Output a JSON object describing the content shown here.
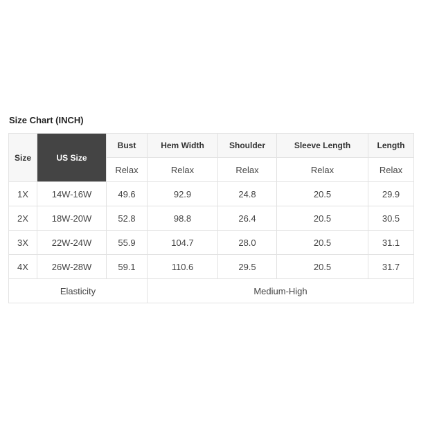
{
  "title": "Size Chart (INCH)",
  "headers": [
    "Size",
    "US Size",
    "Bust",
    "Hem Width",
    "Shoulder",
    "Sleeve Length",
    "Length"
  ],
  "fit": [
    "Relax",
    "Relax",
    "Relax",
    "Relax",
    "Relax"
  ],
  "rows": [
    [
      "1X",
      "14W-16W",
      "49.6",
      "92.9",
      "24.8",
      "20.5",
      "29.9"
    ],
    [
      "2X",
      "18W-20W",
      "52.8",
      "98.8",
      "26.4",
      "20.5",
      "30.5"
    ],
    [
      "3X",
      "22W-24W",
      "55.9",
      "104.7",
      "28.0",
      "20.5",
      "31.1"
    ],
    [
      "4X",
      "26W-28W",
      "59.1",
      "110.6",
      "29.5",
      "20.5",
      "31.7"
    ]
  ],
  "footer": {
    "label": "Elasticity",
    "value": "Medium-High"
  },
  "colors": {
    "highlight_header": "#444444",
    "header_bg": "#f7f7f7"
  }
}
